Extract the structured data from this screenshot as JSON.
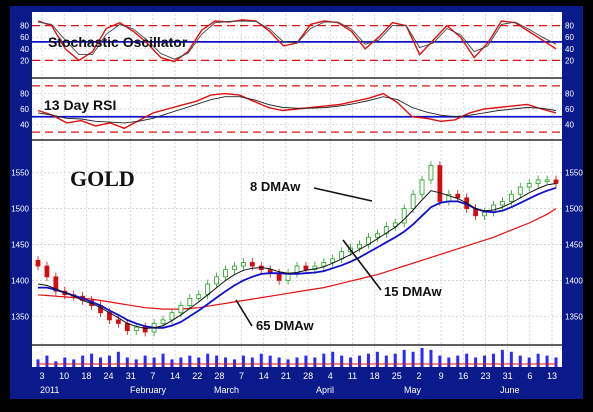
{
  "colors": {
    "frame": "#0a1a8a",
    "panel_bg": "#ffffff",
    "grid": "#c8c8c8",
    "red": "#e01010",
    "blue": "#1010c8",
    "black": "#111111",
    "candle_up": "#20a020",
    "candle_down": "#d01010",
    "volume": "#2a2aff"
  },
  "chart_data": [
    {
      "type": "line",
      "title": "Stochastic Oscillator",
      "ylim": [
        0,
        100
      ],
      "yticks": [
        "80",
        "60",
        "40",
        "20"
      ],
      "yticks_right": [
        "80",
        "60",
        "40",
        "20"
      ],
      "reference_lines": [
        80,
        20
      ],
      "signal_line": 52,
      "series": [
        {
          "color": "#e01010",
          "values": [
            88,
            80,
            40,
            20,
            35,
            75,
            85,
            70,
            50,
            25,
            18,
            35,
            72,
            88,
            86,
            90,
            88,
            70,
            45,
            50,
            82,
            88,
            85,
            70,
            40,
            60,
            85,
            80,
            30,
            55,
            80,
            60,
            25,
            50,
            88,
            85,
            70,
            55,
            40
          ]
        },
        {
          "color": "#444444",
          "values": [
            86,
            82,
            55,
            30,
            30,
            65,
            82,
            74,
            55,
            32,
            22,
            32,
            65,
            85,
            87,
            88,
            87,
            74,
            52,
            50,
            75,
            86,
            86,
            74,
            48,
            55,
            80,
            80,
            42,
            50,
            75,
            64,
            35,
            45,
            82,
            86,
            74,
            60,
            48
          ]
        }
      ]
    },
    {
      "type": "line",
      "title": "13 Day RSI",
      "ylim": [
        25,
        95
      ],
      "yticks": [
        "80",
        "60",
        "40"
      ],
      "yticks_right": [
        "80",
        "60",
        "40"
      ],
      "reference_lines": [
        90,
        30
      ],
      "signal_line": 50,
      "series": [
        {
          "color": "#e01010",
          "values": [
            58,
            52,
            42,
            45,
            38,
            42,
            35,
            45,
            55,
            60,
            65,
            70,
            78,
            80,
            78,
            70,
            62,
            58,
            60,
            62,
            64,
            66,
            70,
            74,
            80,
            68,
            50,
            48,
            44,
            46,
            55,
            60,
            62,
            64,
            66,
            60,
            55
          ]
        },
        {
          "color": "#222222",
          "values": [
            55,
            52,
            48,
            47,
            44,
            43,
            42,
            44,
            48,
            54,
            60,
            66,
            72,
            76,
            76,
            72,
            66,
            62,
            61,
            61,
            62,
            64,
            67,
            71,
            76,
            72,
            62,
            56,
            52,
            50,
            52,
            55,
            58,
            60,
            62,
            61,
            58
          ]
        }
      ]
    },
    {
      "type": "candlestick",
      "title": "GOLD",
      "ylim": [
        1310,
        1590
      ],
      "yticks": [
        "1550",
        "1500",
        "1450",
        "1400",
        "1350"
      ],
      "yticks_right": [
        "1550",
        "1500",
        "1450",
        "1400",
        "1350"
      ],
      "x_tick_labels": [
        "3",
        "10",
        "18",
        "24",
        "31",
        "7",
        "14",
        "22",
        "28",
        "7",
        "14",
        "21",
        "28",
        "4",
        "11",
        "18",
        "25",
        "2",
        "9",
        "16",
        "23",
        "31",
        "6",
        "13"
      ],
      "month_labels": [
        "2011",
        "February",
        "March",
        "April",
        "May",
        "June"
      ],
      "annotations": [
        {
          "text": "8 DMAw",
          "series": "ma8"
        },
        {
          "text": "15 DMAw",
          "series": "ma15"
        },
        {
          "text": "65 DMAw",
          "series": "ma65"
        }
      ],
      "close": [
        1420,
        1405,
        1385,
        1380,
        1378,
        1372,
        1365,
        1355,
        1345,
        1340,
        1330,
        1335,
        1328,
        1340,
        1345,
        1355,
        1365,
        1375,
        1380,
        1395,
        1405,
        1415,
        1420,
        1425,
        1420,
        1415,
        1410,
        1400,
        1410,
        1420,
        1415,
        1420,
        1425,
        1430,
        1440,
        1445,
        1450,
        1460,
        1465,
        1475,
        1480,
        1500,
        1520,
        1540,
        1560,
        1510,
        1520,
        1515,
        1500,
        1490,
        1495,
        1505,
        1510,
        1520,
        1530,
        1535,
        1540,
        1540,
        1535
      ],
      "ma8": [
        1395,
        1393,
        1388,
        1383,
        1378,
        1372,
        1368,
        1362,
        1355,
        1348,
        1340,
        1336,
        1333,
        1334,
        1337,
        1344,
        1352,
        1361,
        1370,
        1380,
        1390,
        1400,
        1408,
        1414,
        1417,
        1418,
        1416,
        1412,
        1410,
        1411,
        1414,
        1416,
        1419,
        1424,
        1430,
        1436,
        1443,
        1450,
        1458,
        1466,
        1474,
        1485,
        1498,
        1512,
        1525,
        1522,
        1518,
        1514,
        1508,
        1500,
        1497,
        1498,
        1502,
        1508,
        1515,
        1522,
        1528,
        1533,
        1535
      ],
      "ma15": [
        1390,
        1390,
        1387,
        1383,
        1379,
        1375,
        1370,
        1365,
        1358,
        1352,
        1345,
        1340,
        1336,
        1334,
        1334,
        1337,
        1342,
        1350,
        1358,
        1367,
        1376,
        1385,
        1393,
        1400,
        1405,
        1409,
        1410,
        1410,
        1409,
        1409,
        1410,
        1411,
        1413,
        1417,
        1421,
        1426,
        1432,
        1439,
        1446,
        1453,
        1460,
        1468,
        1478,
        1490,
        1502,
        1508,
        1510,
        1510,
        1506,
        1500,
        1496,
        1495,
        1497,
        1502,
        1508,
        1514,
        1520,
        1525,
        1529
      ],
      "ma65": [
        1380,
        1379,
        1378,
        1377,
        1376,
        1375,
        1374,
        1372,
        1370,
        1368,
        1366,
        1364,
        1362,
        1361,
        1360,
        1360,
        1360,
        1361,
        1362,
        1364,
        1366,
        1368,
        1370,
        1372,
        1374,
        1376,
        1378,
        1380,
        1382,
        1384,
        1386,
        1388,
        1390,
        1393,
        1396,
        1399,
        1402,
        1405,
        1408,
        1412,
        1416,
        1420,
        1424,
        1428,
        1432,
        1436,
        1440,
        1444,
        1448,
        1452,
        1456,
        1460,
        1465,
        1470,
        1475,
        1480,
        1486,
        1492,
        1500
      ],
      "volume": [
        4,
        6,
        3,
        5,
        4,
        6,
        7,
        5,
        6,
        8,
        5,
        4,
        6,
        5,
        7,
        4,
        5,
        6,
        5,
        7,
        6,
        5,
        4,
        6,
        5,
        7,
        6,
        5,
        4,
        5,
        6,
        5,
        7,
        8,
        6,
        5,
        6,
        7,
        8,
        6,
        7,
        9,
        8,
        10,
        9,
        6,
        5,
        6,
        7,
        5,
        6,
        7,
        9,
        8,
        6,
        5,
        7,
        6,
        5
      ]
    }
  ]
}
